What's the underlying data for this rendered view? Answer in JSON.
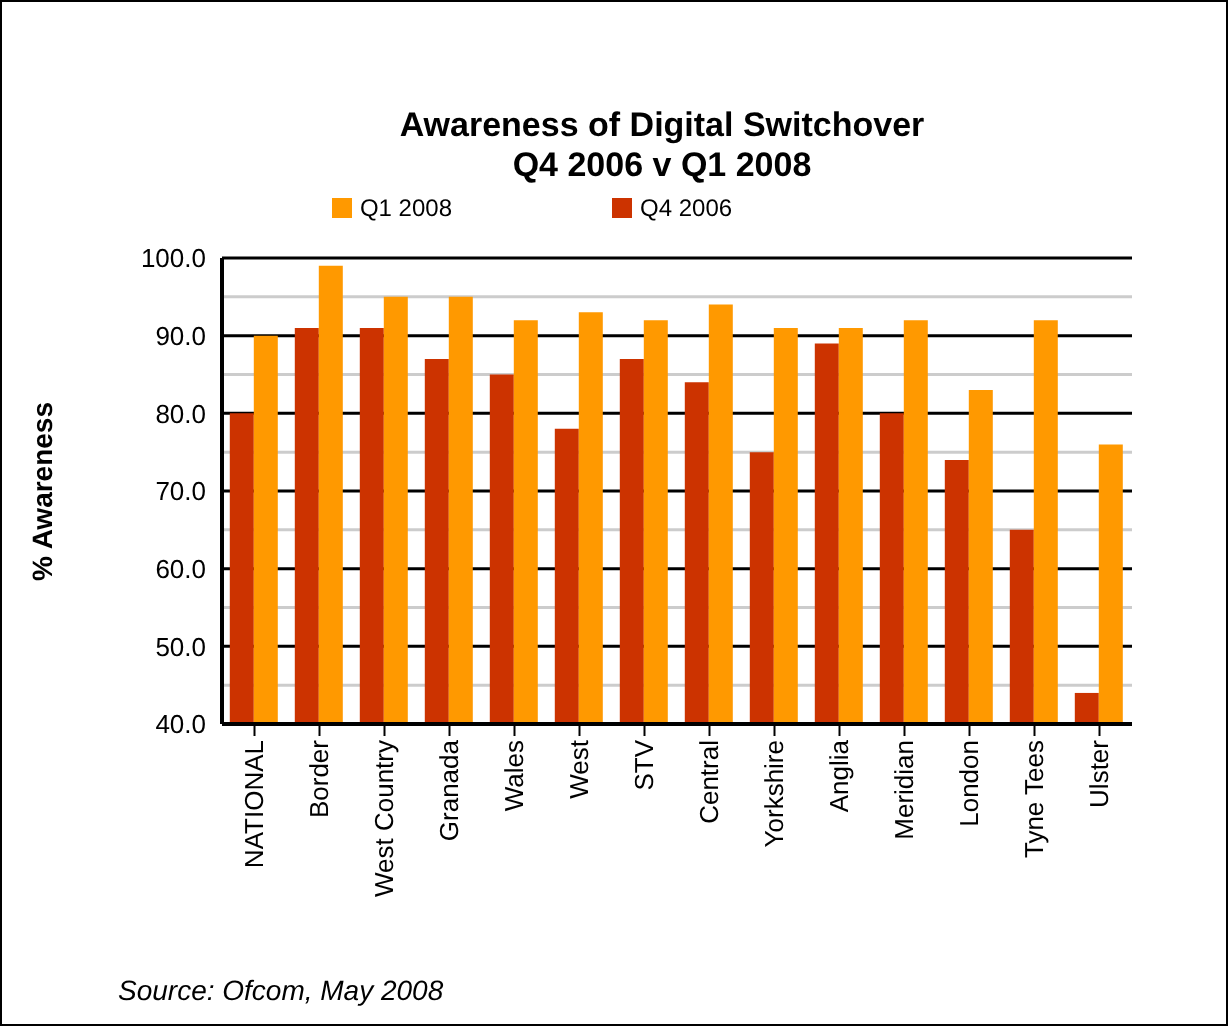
{
  "chart_data": {
    "type": "bar",
    "title": "Awareness of Digital Switchover\nQ4 2006 v Q1 2008",
    "ylabel": "% Awareness",
    "categories": [
      "NATIONAL",
      "Border",
      "West Country",
      "Granada",
      "Wales",
      "West",
      "STV",
      "Central",
      "Yorkshire",
      "Anglia",
      "Meridian",
      "London",
      "Tyne Tees",
      "Ulster"
    ],
    "series": [
      {
        "name": "Q4 2006",
        "color": "#cc3300",
        "values": [
          80,
          91,
          91,
          87,
          85,
          78,
          87,
          84,
          75,
          89,
          80,
          74,
          65,
          44
        ]
      },
      {
        "name": "Q1 2008",
        "color": "#ff9900",
        "values": [
          90,
          99,
          95,
          95,
          92,
          93,
          92,
          94,
          91,
          91,
          92,
          83,
          92,
          76
        ]
      }
    ],
    "ylim": [
      40,
      100
    ],
    "yticks": [
      {
        "value": 40,
        "label": "40.0"
      },
      {
        "value": 45,
        "label": null
      },
      {
        "value": 50,
        "label": "50.0"
      },
      {
        "value": 55,
        "label": null
      },
      {
        "value": 60,
        "label": "60.0"
      },
      {
        "value": 65,
        "label": null
      },
      {
        "value": 70,
        "label": "70.0"
      },
      {
        "value": 75,
        "label": null
      },
      {
        "value": 80,
        "label": "80.0"
      },
      {
        "value": 85,
        "label": null
      },
      {
        "value": 90,
        "label": "90.0"
      },
      {
        "value": 95,
        "label": null
      },
      {
        "value": 100,
        "label": "100.0"
      }
    ],
    "grid": "y",
    "legend": "top",
    "annotations": [
      "Source: Ofcom, May 2008"
    ]
  }
}
